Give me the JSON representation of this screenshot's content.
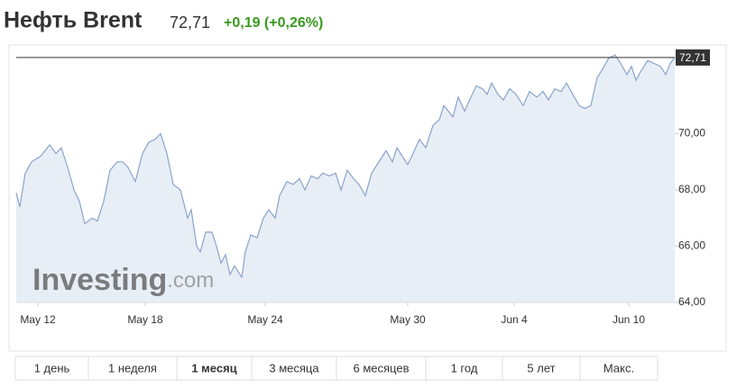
{
  "header": {
    "title": "Нефть Brent",
    "price": "72,71",
    "change": "+0,19 (+0,26%)"
  },
  "chart_data": {
    "type": "line",
    "x": [
      0,
      4,
      10,
      17,
      27,
      37,
      44,
      50,
      57,
      64,
      70,
      76,
      84,
      90,
      97,
      104,
      112,
      118,
      124,
      132,
      140,
      147,
      154,
      160,
      167,
      174,
      182,
      190,
      194,
      200,
      204,
      210,
      217,
      222,
      227,
      232,
      237,
      242,
      250,
      254,
      260,
      267,
      274,
      280,
      287,
      292,
      300,
      307,
      314,
      320,
      327,
      334,
      340,
      347,
      354,
      360,
      367,
      374,
      380,
      387,
      394,
      402,
      410,
      417,
      422,
      430,
      434,
      440,
      447,
      454,
      462,
      469,
      474,
      479,
      484,
      490,
      497,
      504,
      510,
      517,
      522,
      527,
      534,
      540,
      547,
      554,
      562,
      569,
      577,
      584,
      590,
      597,
      604,
      610,
      617,
      624,
      630,
      637,
      644,
      650,
      657,
      664,
      670,
      677,
      682,
      687,
      692,
      700,
      707,
      714,
      720,
      725,
      730
    ],
    "series": [
      {
        "name": "Brent",
        "color": "#8aa4cc",
        "values": [
          67.9,
          67.4,
          68.6,
          69.0,
          69.2,
          69.6,
          69.3,
          69.5,
          68.8,
          68.0,
          67.6,
          66.8,
          67.0,
          66.9,
          67.6,
          68.7,
          69.0,
          69.0,
          68.8,
          68.3,
          69.3,
          69.7,
          69.8,
          70.0,
          69.3,
          68.2,
          68.0,
          67.0,
          67.3,
          66.0,
          65.8,
          66.5,
          66.5,
          66.0,
          65.4,
          65.7,
          65.0,
          65.3,
          64.9,
          65.8,
          66.4,
          66.3,
          67.0,
          67.3,
          67.0,
          67.8,
          68.3,
          68.2,
          68.4,
          68.0,
          68.5,
          68.4,
          68.6,
          68.5,
          68.6,
          68.0,
          68.7,
          68.4,
          68.2,
          67.8,
          68.6,
          69.0,
          69.4,
          69.0,
          69.5,
          69.1,
          68.9,
          69.3,
          69.8,
          69.5,
          70.3,
          70.5,
          71.0,
          70.8,
          70.6,
          71.3,
          70.8,
          71.3,
          71.7,
          71.6,
          71.4,
          71.8,
          71.4,
          71.2,
          71.6,
          71.4,
          71.0,
          71.5,
          71.3,
          71.5,
          71.2,
          71.6,
          71.5,
          71.8,
          71.4,
          71.0,
          70.9,
          71.0,
          72.0,
          72.3,
          72.7,
          72.8,
          72.5,
          72.1,
          72.4,
          71.9,
          72.2,
          72.6,
          72.5,
          72.4,
          72.1,
          72.5,
          72.71
        ]
      }
    ],
    "xlim": [
      0,
      730
    ],
    "xticks": [
      {
        "value": 24,
        "label": "May 12"
      },
      {
        "value": 143,
        "label": "May 18"
      },
      {
        "value": 276,
        "label": "May 24"
      },
      {
        "value": 434,
        "label": "May 30"
      },
      {
        "value": 552,
        "label": "Jun 4"
      },
      {
        "value": 679,
        "label": "Jun 10"
      }
    ],
    "ylim": [
      64,
      72.93
    ],
    "yticks": [
      {
        "value": 64,
        "label": "64,00"
      },
      {
        "value": 66,
        "label": "66,00"
      },
      {
        "value": 68,
        "label": "68,00"
      },
      {
        "value": 70,
        "label": "70,00"
      }
    ],
    "last_value": {
      "value": 72.71,
      "label": "72,71"
    },
    "watermark": [
      "Investing",
      ".com"
    ]
  },
  "tabs": [
    "1 день",
    "1 неделя",
    "1 месяц",
    "3 месяца",
    "6 месяцев",
    "1 год",
    "5 лет",
    "Макс."
  ],
  "active_tab": 2
}
